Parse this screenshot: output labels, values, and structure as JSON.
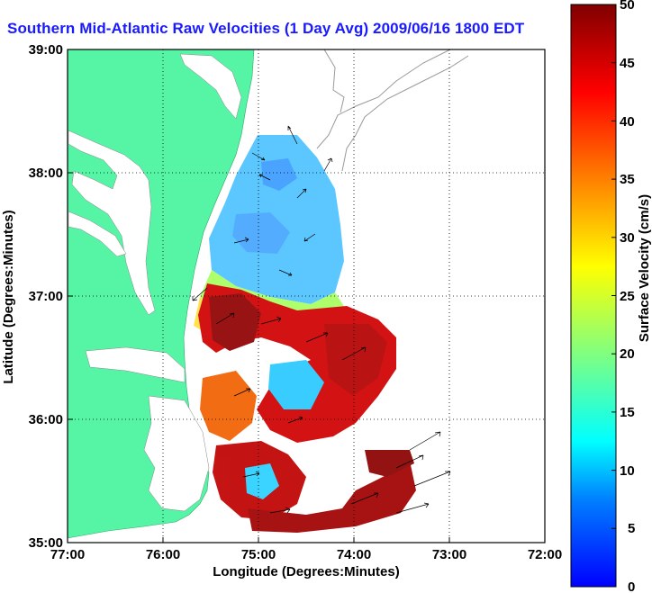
{
  "title": "Southern Mid-Atlantic Raw Velocities (1 Day Avg) 2009/06/16 1800 EDT",
  "map": {
    "xlabel": "Longitude (Degrees:Minutes)",
    "ylabel": "Latitude (Degrees:Minutes)",
    "lon_ticks": [
      "77:00",
      "76:00",
      "75:00",
      "74:00",
      "73:00",
      "72:00"
    ],
    "lat_ticks": [
      "39:00",
      "38:00",
      "37:00",
      "36:00",
      "35:00"
    ],
    "lon_range": [
      -77,
      -72
    ],
    "lat_range": [
      35,
      39
    ],
    "land_color": "#55f5a5",
    "grid": "dotted"
  },
  "colorbar": {
    "label": "Surface Velocity (cm/s)",
    "min": 0,
    "max": 50,
    "ticks": [
      "50",
      "45",
      "40",
      "35",
      "30",
      "25",
      "20",
      "15",
      "10",
      "5",
      "0"
    ],
    "colors": [
      "#0000ff",
      "#0080ff",
      "#00ffff",
      "#80ff80",
      "#ffff00",
      "#ff8000",
      "#ff0000",
      "#800000"
    ]
  }
}
